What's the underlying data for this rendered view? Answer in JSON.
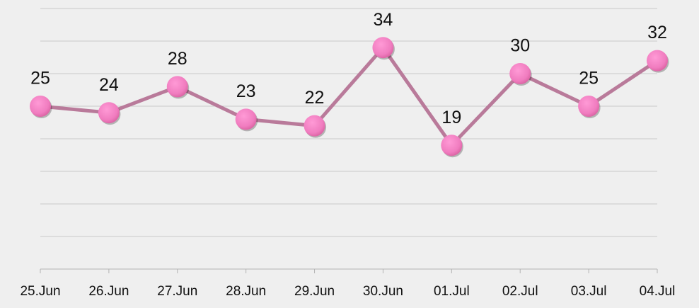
{
  "chart_data": {
    "type": "line",
    "categories": [
      "25.Jun",
      "26.Jun",
      "27.Jun",
      "28.Jun",
      "29.Jun",
      "30.Jun",
      "01.Jul",
      "02.Jul",
      "03.Jul",
      "04.Jul"
    ],
    "series": [
      {
        "color": "#b97a9a",
        "marker_color": "#f07cbf",
        "values": [
          25,
          24,
          28,
          23,
          22,
          34,
          19,
          30,
          25,
          32
        ]
      }
    ],
    "ylim": [
      0,
      40
    ],
    "yticks": [
      0,
      5,
      10,
      15,
      20,
      25,
      30,
      35,
      40
    ],
    "grid": true
  }
}
